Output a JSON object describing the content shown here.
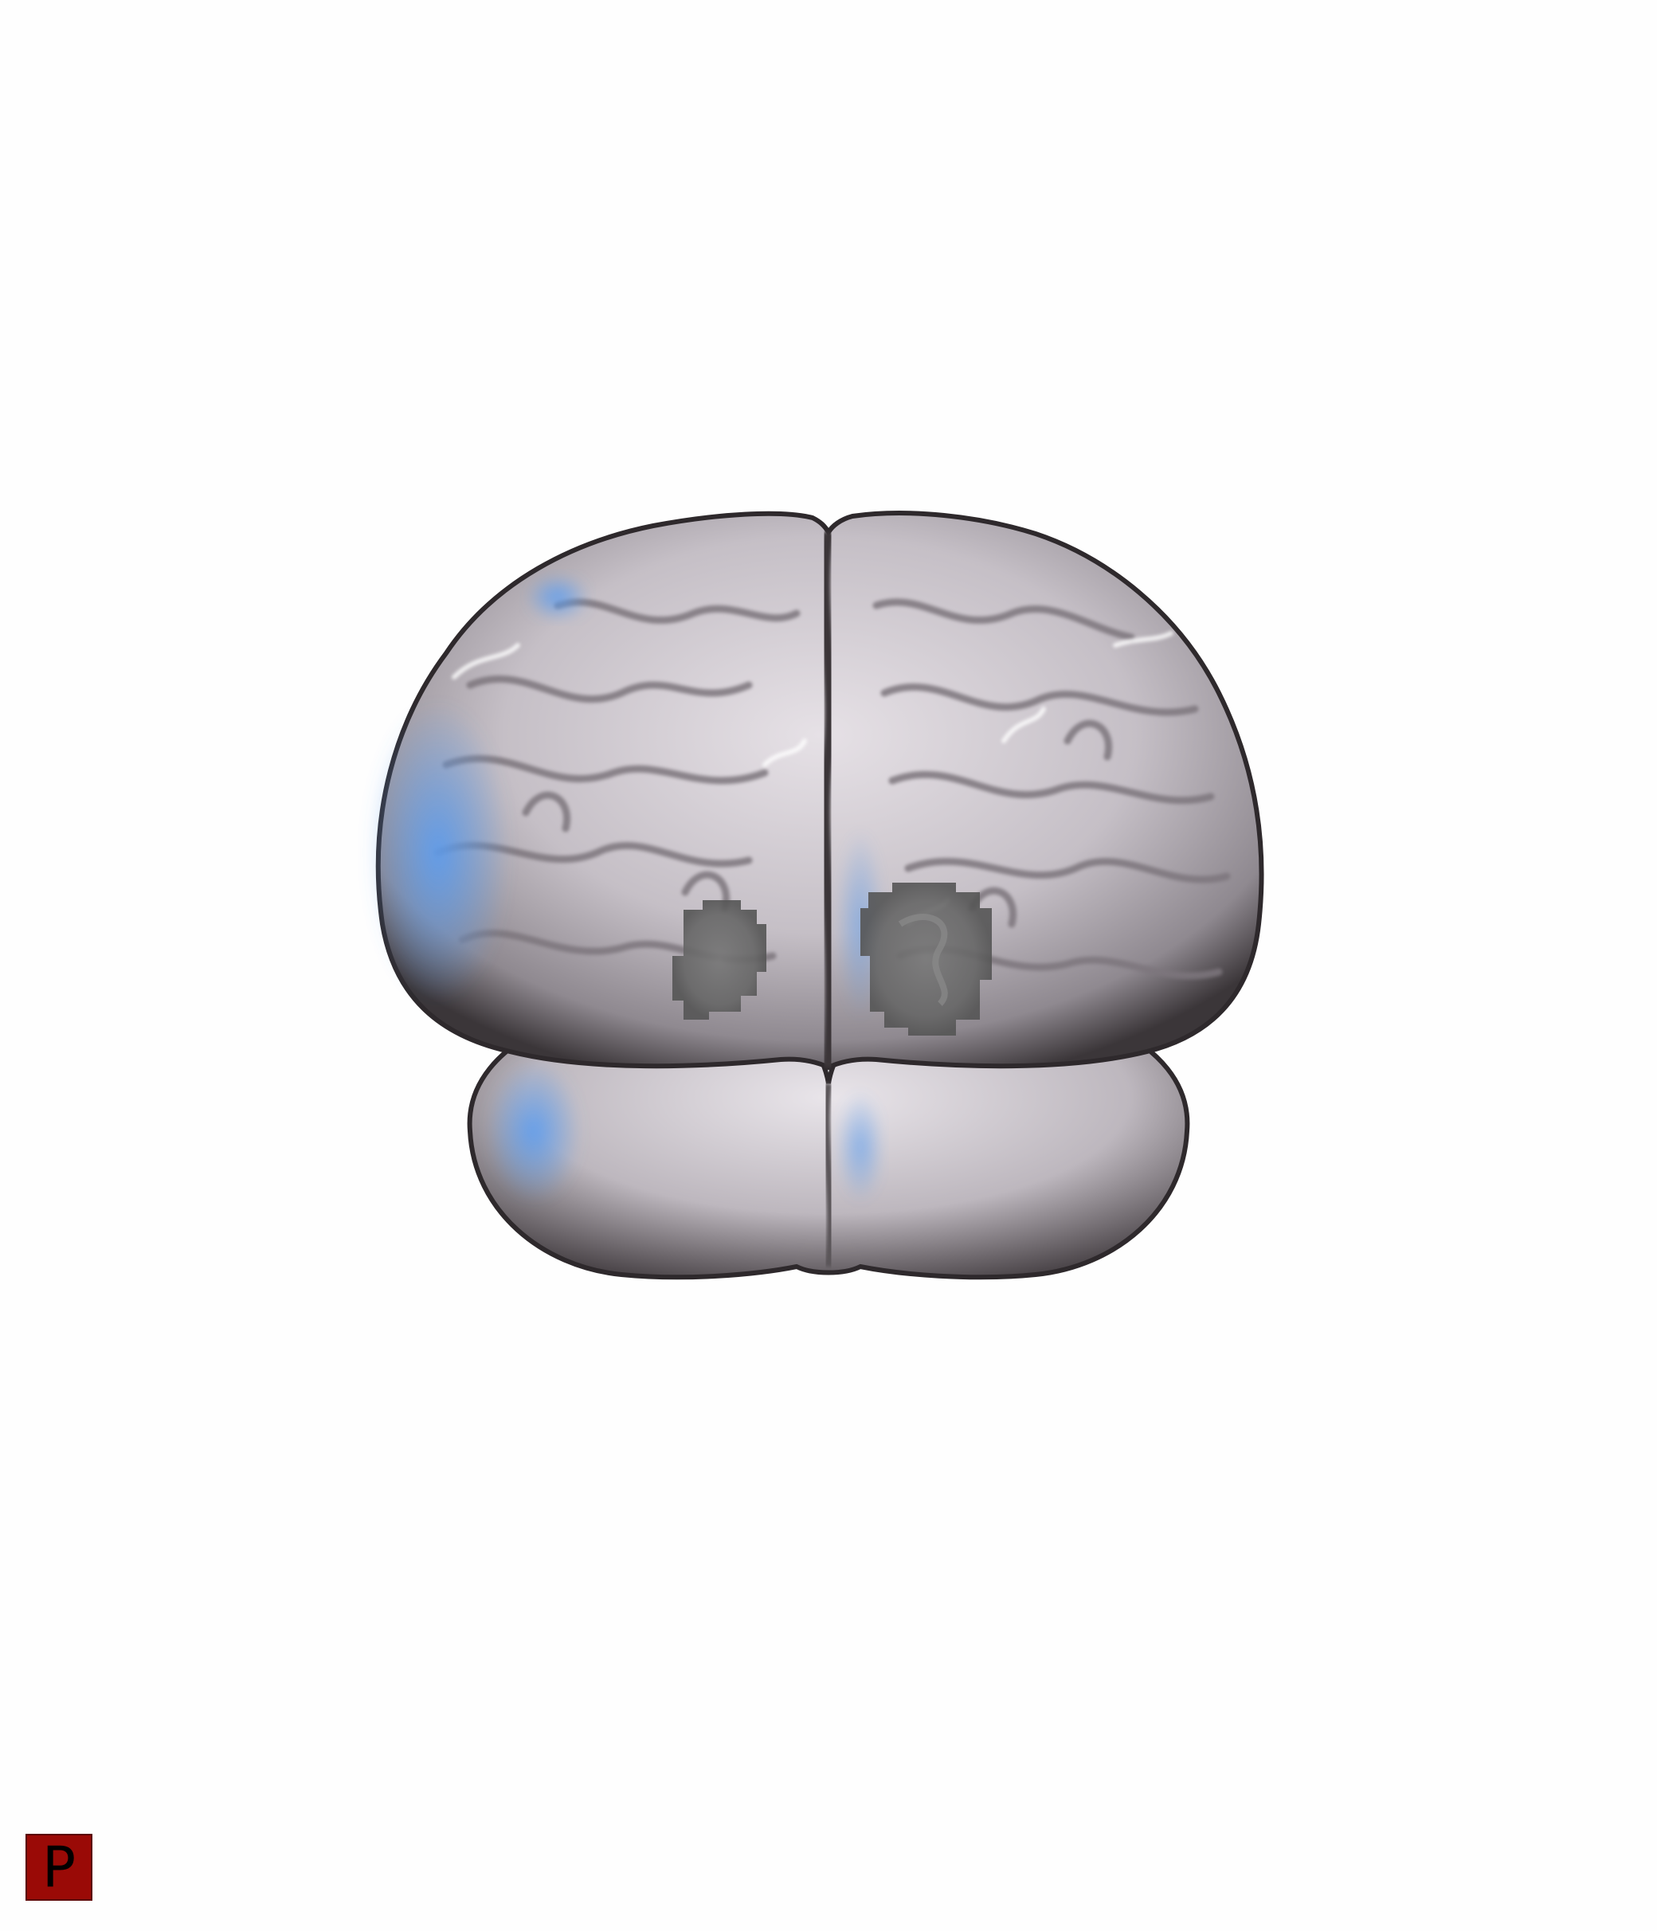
{
  "viewer": {
    "orientation_label": "P",
    "background_color": "#fefefe"
  },
  "colors": {
    "marker_fill": "#9a0a06",
    "marker_text": "#000000",
    "brain_base": "#c9c3cb",
    "brain_shadow": "#3a3438",
    "lighting_accent": "#4f8ee0",
    "roi_fill": "#6a6a6a"
  },
  "icons": {
    "render": "brain-3d-render",
    "marker": "orientation-marker-posterior"
  }
}
